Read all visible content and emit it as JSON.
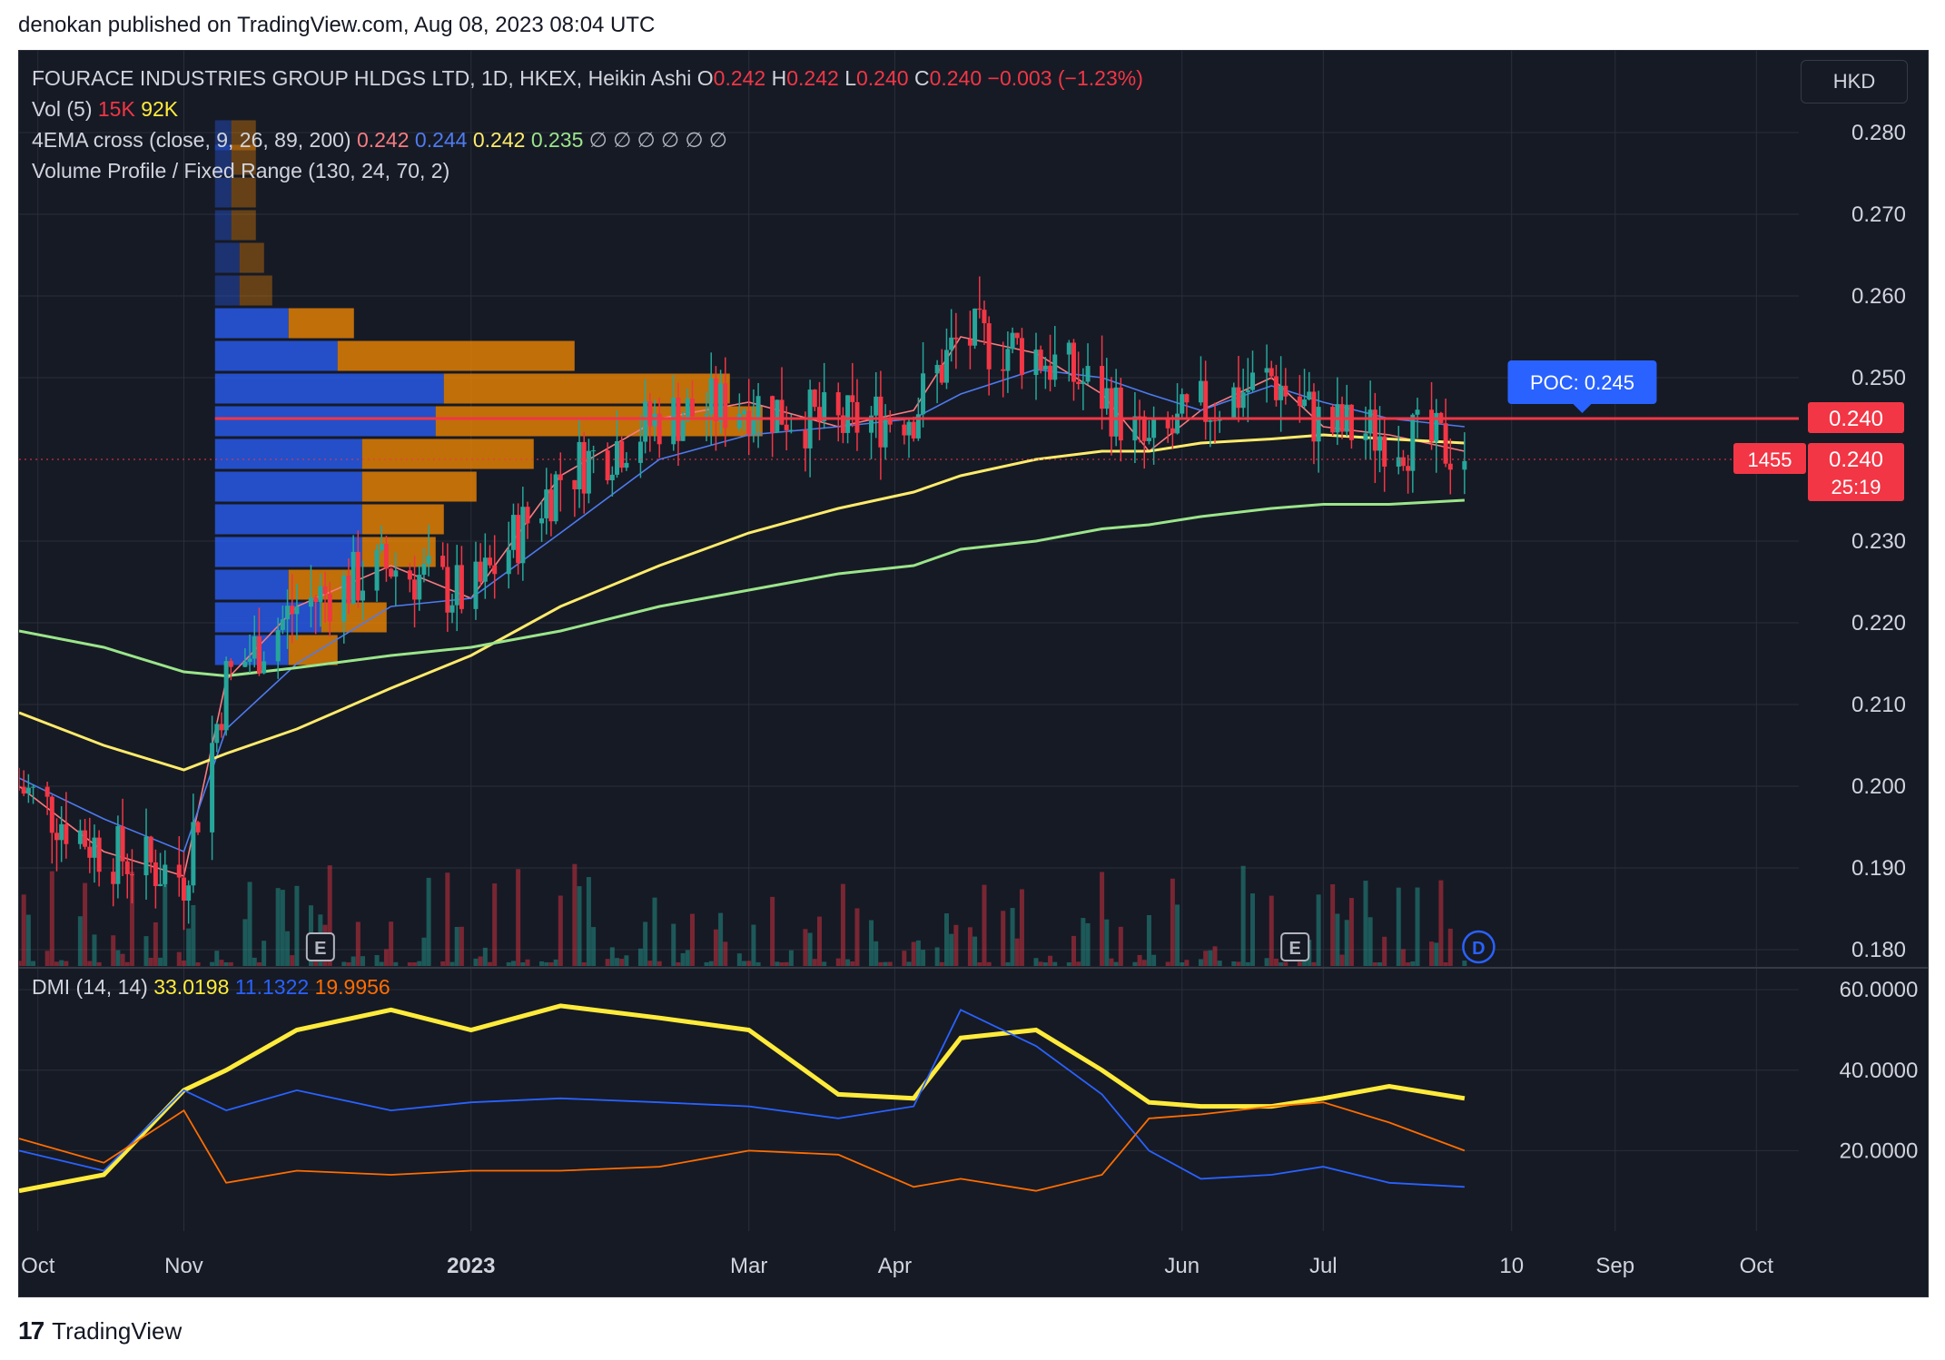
{
  "publisher_line": "denokan published on TradingView.com, Aug 08, 2023 08:04 UTC",
  "footer": {
    "logo": "17",
    "brand": "TradingView"
  },
  "colors": {
    "background": "#161a25",
    "up": "#26a69a",
    "down": "#f23645",
    "text": "#d1d4dc",
    "grid": "#2a2e39"
  },
  "header": {
    "symbol": "FOURACE INDUSTRIES GROUP HLDGS LTD, 1D, HKEX, Heikin Ashi",
    "o_label": "O",
    "o": "0.242",
    "h_label": "H",
    "h": "0.242",
    "l_label": "L",
    "l": "0.240",
    "c_label": "C",
    "c": "0.240",
    "change": "−0.003 (−1.23%)",
    "currency": "HKD"
  },
  "indicators": {
    "vol": {
      "label": "Vol (5)",
      "v1": "15K",
      "v2": "92K"
    },
    "ema": {
      "label": "4EMA cross (close, 9, 26, 89, 200)",
      "v1": "0.242",
      "v2": "0.244",
      "v3": "0.242",
      "v4": "0.235",
      "tail": "∅ ∅ ∅ ∅ ∅ ∅"
    },
    "vp": {
      "label": "Volume Profile / Fixed Range (130, 24, 70, 2)"
    },
    "dmi": {
      "label": "DMI (14, 14)",
      "adx": "33.0198",
      "plus": "11.1322",
      "minus": "19.9956"
    }
  },
  "price_axis": {
    "ticks": [
      "0.280",
      "0.270",
      "0.260",
      "0.250",
      "0.230",
      "0.220",
      "0.210",
      "0.200",
      "0.190",
      "0.180"
    ]
  },
  "price_badges": {
    "poc_price": "0.240",
    "last_price": "0.240",
    "countdown": "25:19",
    "volume": "1455"
  },
  "poc_label": "POC: 0.245",
  "dmi_axis": {
    "ticks": [
      "60.0000",
      "40.0000",
      "20.0000"
    ]
  },
  "time_axis": {
    "labels": [
      "Oct",
      "Nov",
      "2023",
      "Mar",
      "Apr",
      "Jun",
      "Jul",
      "10",
      "Sep",
      "Oct"
    ]
  },
  "markers": {
    "earnings": "E",
    "dividend": "D"
  },
  "chart_data": {
    "type": "candlestick",
    "title": "FOURACE INDUSTRIES GROUP HLDGS LTD, 1D, HKEX, Heikin Ashi",
    "ylim": [
      0.178,
      0.29
    ],
    "x_range": [
      "2022-09-27",
      "2023-10-10"
    ],
    "poc": 0.245,
    "last_close": 0.24,
    "series": [
      {
        "name": "EMA 9",
        "color": "#f77c80",
        "x": [
          "2022-09-27",
          "2022-10-15",
          "2022-11-01",
          "2022-11-10",
          "2022-11-25",
          "2022-12-15",
          "2023-01-01",
          "2023-01-20",
          "2023-02-10",
          "2023-03-01",
          "2023-03-20",
          "2023-04-05",
          "2023-04-15",
          "2023-05-01",
          "2023-05-15",
          "2023-05-25",
          "2023-06-05",
          "2023-06-20",
          "2023-07-01",
          "2023-07-15",
          "2023-07-31"
        ],
        "values": [
          0.2,
          0.192,
          0.189,
          0.213,
          0.222,
          0.227,
          0.223,
          0.238,
          0.245,
          0.247,
          0.244,
          0.246,
          0.255,
          0.253,
          0.248,
          0.241,
          0.246,
          0.25,
          0.244,
          0.243,
          0.241
        ]
      },
      {
        "name": "EMA 26",
        "color": "#4e7bef",
        "x": [
          "2022-09-27",
          "2022-10-15",
          "2022-11-01",
          "2022-11-10",
          "2022-11-25",
          "2022-12-15",
          "2023-01-01",
          "2023-01-20",
          "2023-02-10",
          "2023-03-01",
          "2023-03-20",
          "2023-04-05",
          "2023-04-15",
          "2023-05-01",
          "2023-05-15",
          "2023-05-25",
          "2023-06-05",
          "2023-06-20",
          "2023-07-01",
          "2023-07-15",
          "2023-07-31"
        ],
        "values": [
          0.201,
          0.196,
          0.192,
          0.207,
          0.215,
          0.222,
          0.223,
          0.231,
          0.24,
          0.243,
          0.244,
          0.245,
          0.248,
          0.251,
          0.25,
          0.248,
          0.246,
          0.249,
          0.247,
          0.245,
          0.244
        ]
      },
      {
        "name": "EMA 89",
        "color": "#ffeb6b",
        "x": [
          "2022-09-27",
          "2022-10-15",
          "2022-11-01",
          "2022-11-10",
          "2022-11-25",
          "2022-12-15",
          "2023-01-01",
          "2023-01-20",
          "2023-02-10",
          "2023-03-01",
          "2023-03-20",
          "2023-04-05",
          "2023-04-15",
          "2023-05-01",
          "2023-05-15",
          "2023-05-25",
          "2023-06-05",
          "2023-06-20",
          "2023-07-01",
          "2023-07-15",
          "2023-07-31"
        ],
        "values": [
          0.209,
          0.205,
          0.202,
          0.204,
          0.207,
          0.212,
          0.216,
          0.222,
          0.227,
          0.231,
          0.234,
          0.236,
          0.238,
          0.24,
          0.241,
          0.241,
          0.242,
          0.2425,
          0.243,
          0.2425,
          0.242
        ]
      },
      {
        "name": "EMA 200",
        "color": "#9be58a",
        "x": [
          "2022-09-27",
          "2022-10-15",
          "2022-11-01",
          "2022-11-10",
          "2022-11-25",
          "2022-12-15",
          "2023-01-01",
          "2023-01-20",
          "2023-02-10",
          "2023-03-01",
          "2023-03-20",
          "2023-04-05",
          "2023-04-15",
          "2023-05-01",
          "2023-05-15",
          "2023-05-25",
          "2023-06-05",
          "2023-06-20",
          "2023-07-01",
          "2023-07-15",
          "2023-07-31"
        ],
        "values": [
          0.219,
          0.217,
          0.214,
          0.2135,
          0.2145,
          0.216,
          0.217,
          0.219,
          0.222,
          0.224,
          0.226,
          0.227,
          0.229,
          0.23,
          0.2315,
          0.232,
          0.233,
          0.234,
          0.2345,
          0.2345,
          0.235
        ]
      }
    ],
    "volume_profile": {
      "prices": [
        0.28,
        0.277,
        0.273,
        0.269,
        0.265,
        0.261,
        0.257,
        0.253,
        0.249,
        0.245,
        0.241,
        0.237,
        0.233,
        0.229,
        0.225,
        0.221,
        0.217
      ],
      "up_volume": [
        2,
        2,
        2,
        2,
        3,
        3,
        9,
        15,
        28,
        27,
        18,
        18,
        18,
        18,
        9,
        13,
        9
      ],
      "down_volume": [
        3,
        3,
        3,
        3,
        3,
        4,
        8,
        29,
        35,
        40,
        21,
        14,
        10,
        9,
        8,
        8,
        6
      ]
    },
    "dmi": {
      "ylim": [
        0,
        65
      ],
      "x": [
        "2022-09-27",
        "2022-10-15",
        "2022-11-01",
        "2022-11-10",
        "2022-11-25",
        "2022-12-15",
        "2023-01-01",
        "2023-01-20",
        "2023-02-10",
        "2023-03-01",
        "2023-03-20",
        "2023-04-05",
        "2023-04-15",
        "2023-05-01",
        "2023-05-15",
        "2023-05-25",
        "2023-06-05",
        "2023-06-20",
        "2023-07-01",
        "2023-07-15",
        "2023-07-31"
      ],
      "series": [
        {
          "name": "ADX",
          "color": "#ffeb3b",
          "values": [
            10,
            14,
            35,
            40,
            50,
            55,
            50,
            56,
            53,
            50,
            34,
            33,
            48,
            50,
            40,
            32,
            31,
            31,
            33,
            36,
            33
          ]
        },
        {
          "name": "+DI",
          "color": "#2962ff",
          "values": [
            20,
            15,
            35,
            30,
            35,
            30,
            32,
            33,
            32,
            31,
            28,
            31,
            55,
            46,
            34,
            20,
            13,
            14,
            16,
            12,
            11
          ]
        },
        {
          "name": "-DI",
          "color": "#ff6d00",
          "values": [
            23,
            17,
            30,
            12,
            15,
            14,
            15,
            15,
            16,
            20,
            19,
            11,
            13,
            10,
            14,
            28,
            29,
            31,
            32,
            27,
            20
          ]
        }
      ]
    }
  }
}
